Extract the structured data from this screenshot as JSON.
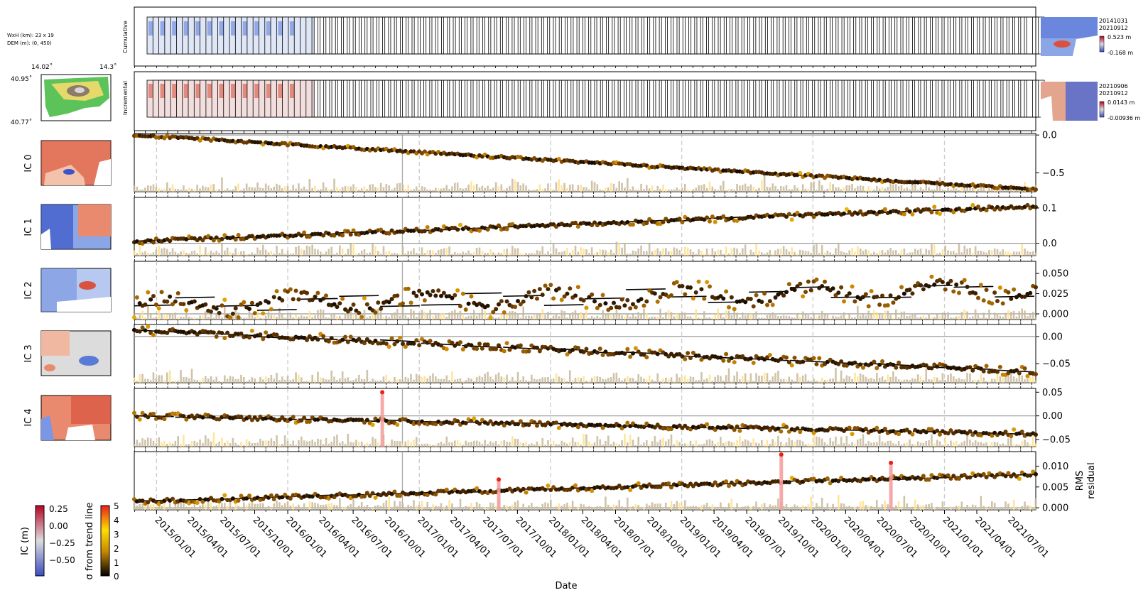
{
  "info": {
    "size_text": "WxH (km): 23 x 19",
    "dem_text": "DEM (m): (0, 450)"
  },
  "location_map": {
    "lon_labels": [
      "14.02˚",
      "14.3˚"
    ],
    "lat_labels": [
      "40.95˚",
      "40.77˚"
    ]
  },
  "strip_labels": {
    "cumulative": "Cumulative",
    "incremental": "Incremental"
  },
  "cumulative_inset": {
    "date_start": "20141031",
    "date_end": "20210912",
    "max_label": "0.523 m",
    "min_label": "-0.168 m"
  },
  "incremental_inset": {
    "date_start": "20210906",
    "date_end": "20210912",
    "max_label": "0.0143 m",
    "min_label": "-0.00936 m"
  },
  "colorbars": {
    "ic": {
      "label": "IC (m)",
      "ticks": [
        "0.25",
        "0.00",
        "−0.25",
        "−0.50"
      ]
    },
    "sigma": {
      "label": "σ from trend line",
      "ticks": [
        "5",
        "4",
        "3",
        "2",
        "1",
        "0"
      ]
    }
  },
  "colors": {
    "trend_line": "#000000",
    "bar_normal": "#c8b89a",
    "bar_highlight": "#ffe08a",
    "outlier": "#e8201a",
    "outlier_bar": "#f4a0a0",
    "date_grid": "#cccccc",
    "zero_line": "#999999"
  },
  "chart_data": {
    "type": "scatter",
    "xlabel": "Date",
    "x_ticks": [
      "2015/01/01",
      "2015/04/01",
      "2015/07/01",
      "2015/10/01",
      "2016/01/01",
      "2016/04/01",
      "2016/07/01",
      "2016/10/01",
      "2017/01/01",
      "2017/04/01",
      "2017/07/01",
      "2017/10/01",
      "2018/01/01",
      "2018/04/01",
      "2018/07/01",
      "2018/10/01",
      "2019/01/01",
      "2019/04/01",
      "2019/07/01",
      "2019/10/01",
      "2020/01/01",
      "2020/04/01",
      "2020/07/01",
      "2020/10/01",
      "2021/01/01",
      "2021/04/01",
      "2021/07/01"
    ],
    "xlim": [
      "2014/10/31",
      "2021/09/12"
    ],
    "panels": [
      {
        "name": "IC 0",
        "ylim": [
          -0.75,
          0.02
        ],
        "yticks": [
          "0.0",
          "−0.5"
        ],
        "ytick_values": [
          0.0,
          -0.5
        ],
        "trend": [
          [
            "2014/10/31",
            0.0
          ],
          [
            "2021/09/12",
            -0.72
          ]
        ],
        "noise": 0.015
      },
      {
        "name": "IC 1",
        "ylim": [
          -0.035,
          0.13
        ],
        "yticks": [
          "0.1",
          "0.0"
        ],
        "ytick_values": [
          0.1,
          0.0
        ],
        "trend": [
          [
            "2014/10/31",
            0.005
          ],
          [
            "2021/09/12",
            0.105
          ]
        ],
        "noise": 0.006
      },
      {
        "name": "IC 2",
        "ylim": [
          -0.007,
          0.065
        ],
        "yticks": [
          "0.050",
          "0.025",
          "0.000"
        ],
        "ytick_values": [
          0.05,
          0.025,
          0.0
        ],
        "trend": [
          [
            "2014/10/31",
            0.01
          ],
          [
            "2021/09/12",
            0.03
          ]
        ],
        "noise": 0.008
      },
      {
        "name": "IC 3",
        "ylim": [
          -0.085,
          0.022
        ],
        "yticks": [
          "0.00",
          "−0.05"
        ],
        "ytick_values": [
          0.0,
          -0.05
        ],
        "trend": [
          [
            "2014/10/31",
            0.012
          ],
          [
            "2021/09/12",
            -0.065
          ]
        ],
        "noise": 0.006
      },
      {
        "name": "IC 4",
        "ylim": [
          -0.065,
          0.058
        ],
        "yticks": [
          "0.05",
          "0.00",
          "−0.05"
        ],
        "ytick_values": [
          0.05,
          0.0,
          -0.05
        ],
        "trend": [
          [
            "2014/10/31",
            0.0
          ],
          [
            "2021/09/12",
            -0.038
          ]
        ],
        "noise": 0.005
      },
      {
        "name": "RMS residual",
        "ylim": [
          -0.0005,
          0.0135
        ],
        "yticks": [
          "0.010",
          "0.005",
          "0.000"
        ],
        "ytick_values": [
          0.01,
          0.005,
          0.0
        ],
        "trend": [
          [
            "2014/10/31",
            0.0015
          ],
          [
            "2021/09/12",
            0.008
          ]
        ],
        "noise": 0.0005,
        "outliers": [
          [
            "2017/08/10",
            0.0068
          ],
          [
            "2019/10/05",
            0.0128
          ],
          [
            "2020/08/05",
            0.0108
          ]
        ]
      }
    ],
    "outliers_ic4": [
      [
        "2016/09/20",
        0.05
      ]
    ]
  }
}
